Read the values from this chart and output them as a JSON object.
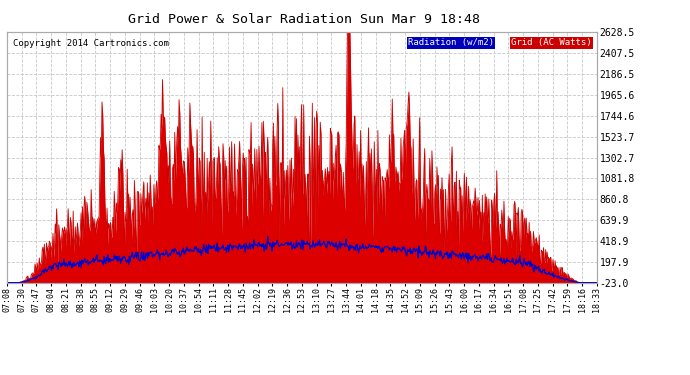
{
  "title": "Grid Power & Solar Radiation Sun Mar 9 18:48",
  "copyright": "Copyright 2014 Cartronics.com",
  "legend_radiation": "Radiation (w/m2)",
  "legend_grid": "Grid (AC Watts)",
  "background_color": "#ffffff",
  "plot_bg_color": "#ffffff",
  "grid_color": "#c8c8c8",
  "radiation_color": "#cc0000",
  "radiation_fill_color": "#dd0000",
  "grid_line_color": "#0000cc",
  "yticks": [
    -23.0,
    197.9,
    418.9,
    639.9,
    860.8,
    1081.8,
    1302.7,
    1523.7,
    1744.6,
    1965.6,
    2186.5,
    2407.5,
    2628.5
  ],
  "ymin": -23.0,
  "ymax": 2628.5,
  "xtick_labels": [
    "07:08",
    "07:30",
    "07:47",
    "08:04",
    "08:21",
    "08:38",
    "08:55",
    "09:12",
    "09:29",
    "09:46",
    "10:03",
    "10:20",
    "10:37",
    "10:54",
    "11:11",
    "11:28",
    "11:45",
    "12:02",
    "12:19",
    "12:36",
    "12:53",
    "13:10",
    "13:27",
    "13:44",
    "14:01",
    "14:18",
    "14:35",
    "14:52",
    "15:09",
    "15:26",
    "15:43",
    "16:00",
    "16:17",
    "16:34",
    "16:51",
    "17:08",
    "17:25",
    "17:42",
    "17:59",
    "18:16",
    "18:33"
  ]
}
